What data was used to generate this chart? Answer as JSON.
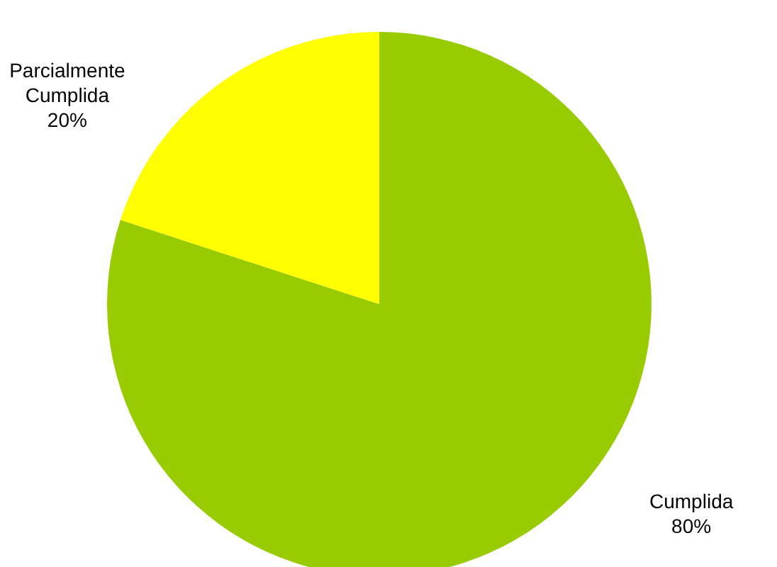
{
  "chart_data": {
    "type": "pie",
    "categories": [
      "Cumplida",
      "Parcialmente Cumplida"
    ],
    "values": [
      80,
      20
    ],
    "colors": [
      "#99cc00",
      "#ffff00"
    ],
    "value_labels": [
      "80%",
      "20%"
    ]
  }
}
